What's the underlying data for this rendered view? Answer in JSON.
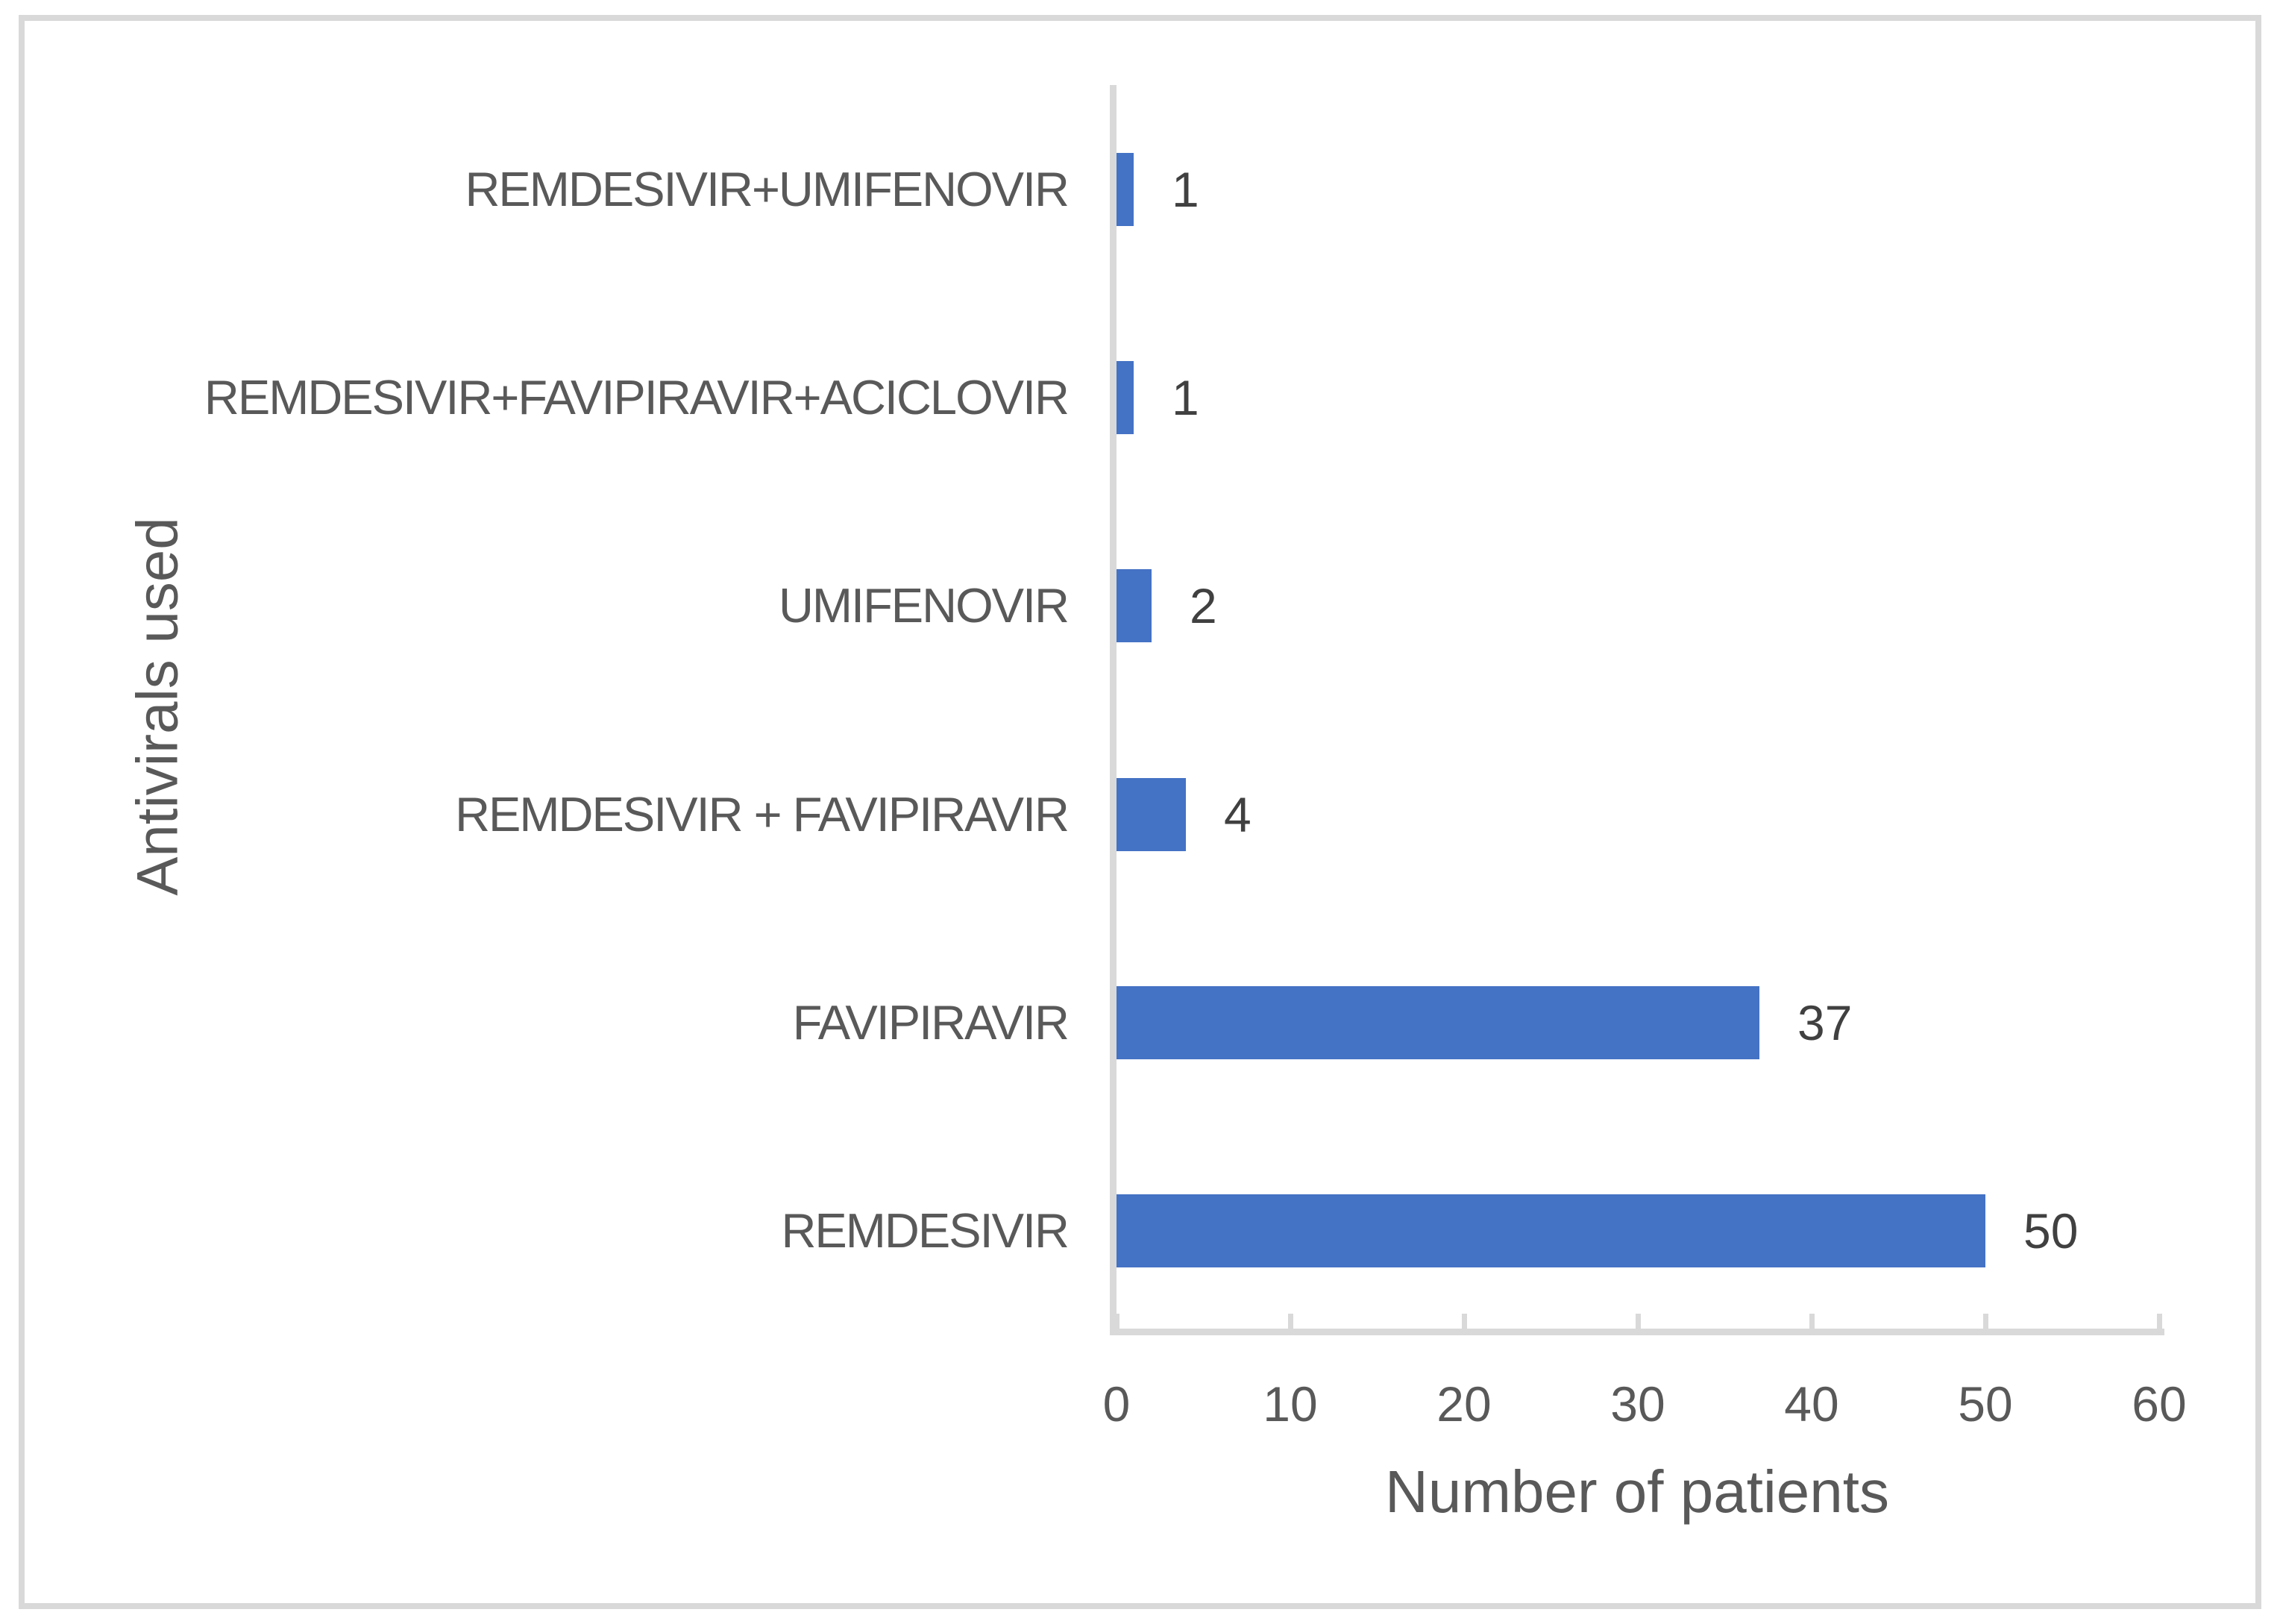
{
  "chart_data": {
    "type": "bar",
    "orientation": "horizontal",
    "categories": [
      "REMDESIVIR+UMIFENOVIR",
      "REMDESIVIR+FAVIPIRAVIR+ACICLOVIR",
      "UMIFENOVIR",
      "REMDESIVIR + FAVIPIRAVIR",
      "FAVIPIRAVIR",
      "REMDESIVIR"
    ],
    "values": [
      1,
      1,
      2,
      4,
      37,
      50
    ],
    "data_labels": [
      "1",
      "1",
      "2",
      "4",
      "37",
      "50"
    ],
    "xlabel": "Number of patients",
    "ylabel": "Antivirals used",
    "xlim": [
      0,
      60
    ],
    "xticks": [
      0,
      10,
      20,
      30,
      40,
      50,
      60
    ],
    "grid": false,
    "legend": false,
    "colors": {
      "bar": "#4472C4",
      "axis_line": "#D9D9D9",
      "frame_border": "#D9D9D9",
      "tick_label": "#595959",
      "category_label": "#595959",
      "axis_title": "#595959",
      "data_label": "#404040",
      "background": "#FFFFFF"
    }
  }
}
